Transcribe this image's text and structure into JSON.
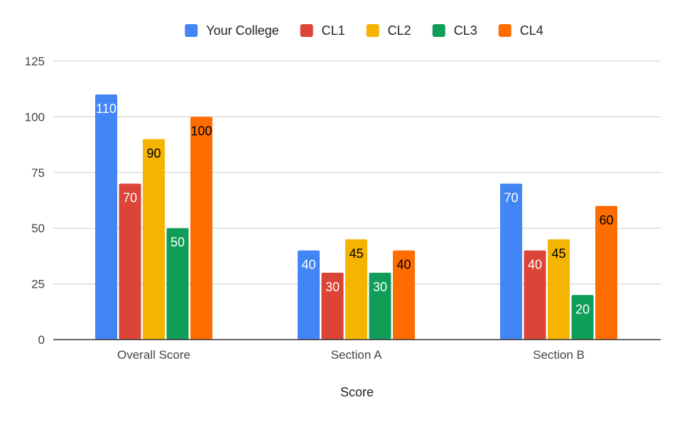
{
  "chart_data": {
    "type": "bar",
    "title": "",
    "xlabel": "Score",
    "ylabel": "",
    "ylim": [
      0,
      125
    ],
    "yticks": [
      0,
      25,
      50,
      75,
      100,
      125
    ],
    "grid": true,
    "legend_position": "top",
    "categories": [
      "Overall Score",
      "Section A",
      "Section B"
    ],
    "series": [
      {
        "name": "Your College",
        "color": "#4285f4",
        "label_color": "#ffffff",
        "values": [
          110,
          40,
          70
        ]
      },
      {
        "name": "CL1",
        "color": "#db4437",
        "label_color": "#ffffff",
        "values": [
          70,
          30,
          40
        ]
      },
      {
        "name": "CL2",
        "color": "#f4b400",
        "label_color": "#000000",
        "values": [
          90,
          45,
          45
        ]
      },
      {
        "name": "CL3",
        "color": "#0f9d58",
        "label_color": "#ffffff",
        "values": [
          50,
          30,
          20
        ]
      },
      {
        "name": "CL4",
        "color": "#ff6d00",
        "label_color": "#000000",
        "values": [
          100,
          40,
          60
        ]
      }
    ]
  }
}
